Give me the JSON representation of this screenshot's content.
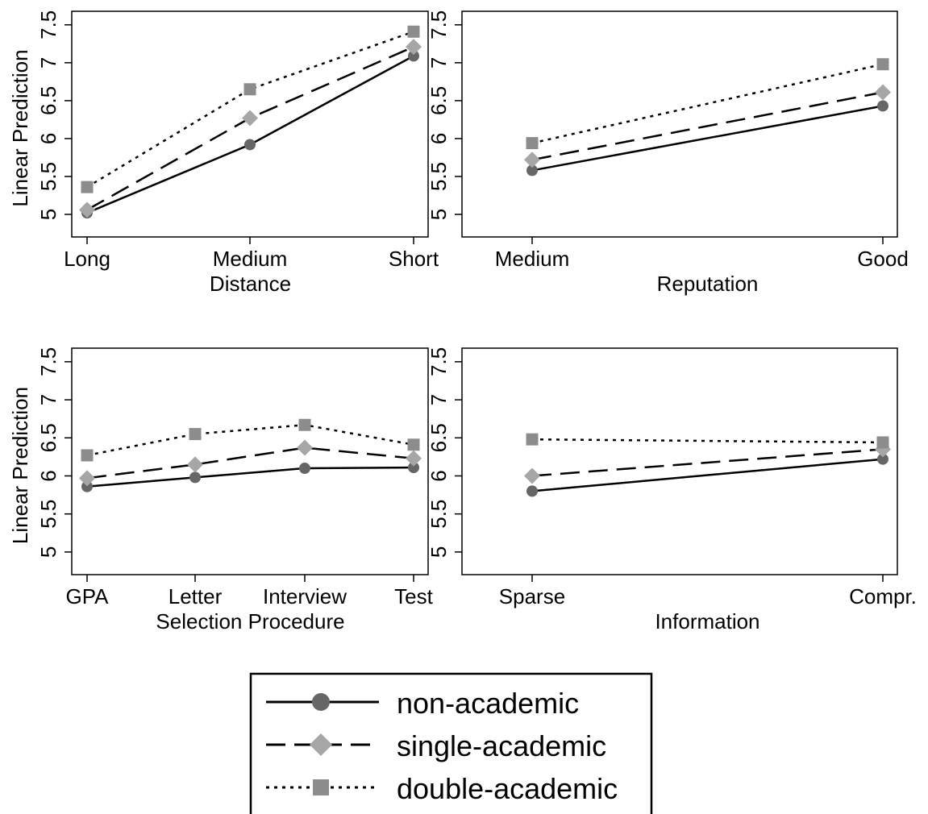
{
  "chart_data": [
    {
      "type": "line",
      "title": "",
      "xlabel": "Distance",
      "ylabel": "Linear Prediction",
      "categories": [
        "Long",
        "Medium",
        "Short"
      ],
      "yticks": [
        "5",
        "5.5",
        "6",
        "6.5",
        "7",
        "7.5"
      ],
      "ylim": [
        5,
        7.5
      ],
      "series": [
        {
          "name": "non-academic",
          "values": [
            5.02,
            5.92,
            7.09
          ]
        },
        {
          "name": "single-academic",
          "values": [
            5.06,
            6.27,
            7.21
          ]
        },
        {
          "name": "double-academic",
          "values": [
            5.36,
            6.65,
            7.41
          ]
        }
      ]
    },
    {
      "type": "line",
      "title": "",
      "xlabel": "Reputation",
      "ylabel": "",
      "categories": [
        "Medium",
        "Good"
      ],
      "yticks": [
        "5",
        "5.5",
        "6",
        "6.5",
        "7",
        "7.5"
      ],
      "ylim": [
        5,
        7.5
      ],
      "series": [
        {
          "name": "non-academic",
          "values": [
            5.58,
            6.43
          ]
        },
        {
          "name": "single-academic",
          "values": [
            5.72,
            6.61
          ]
        },
        {
          "name": "double-academic",
          "values": [
            5.94,
            6.98
          ]
        }
      ]
    },
    {
      "type": "line",
      "title": "",
      "xlabel": "Selection Procedure",
      "ylabel": "Linear Prediction",
      "categories": [
        "GPA",
        "Letter",
        "Interview",
        "Test"
      ],
      "yticks": [
        "5",
        "5.5",
        "6",
        "6.5",
        "7",
        "7.5"
      ],
      "ylim": [
        5,
        7.5
      ],
      "series": [
        {
          "name": "non-academic",
          "values": [
            5.86,
            5.98,
            6.1,
            6.11
          ]
        },
        {
          "name": "single-academic",
          "values": [
            5.97,
            6.15,
            6.37,
            6.23
          ]
        },
        {
          "name": "double-academic",
          "values": [
            6.27,
            6.55,
            6.67,
            6.41
          ]
        }
      ]
    },
    {
      "type": "line",
      "title": "",
      "xlabel": "Information",
      "ylabel": "",
      "categories": [
        "Sparse",
        "Compr."
      ],
      "yticks": [
        "5",
        "5.5",
        "6",
        "6.5",
        "7",
        "7.5"
      ],
      "ylim": [
        5,
        7.5
      ],
      "series": [
        {
          "name": "non-academic",
          "values": [
            5.8,
            6.22
          ]
        },
        {
          "name": "single-academic",
          "values": [
            6.0,
            6.35
          ]
        },
        {
          "name": "double-academic",
          "values": [
            6.48,
            6.44
          ]
        }
      ]
    }
  ],
  "legend": {
    "entries": [
      {
        "label": "non-academic",
        "line": "solid",
        "marker": "circle"
      },
      {
        "label": "single-academic",
        "line": "dashed",
        "marker": "diamond"
      },
      {
        "label": "double-academic",
        "line": "dotted",
        "marker": "square"
      }
    ]
  },
  "colors": {
    "line": "#000000",
    "non_academic_marker": "#666666",
    "single_academic_marker": "#a6a6a6",
    "double_academic_marker": "#8c8c8c"
  }
}
